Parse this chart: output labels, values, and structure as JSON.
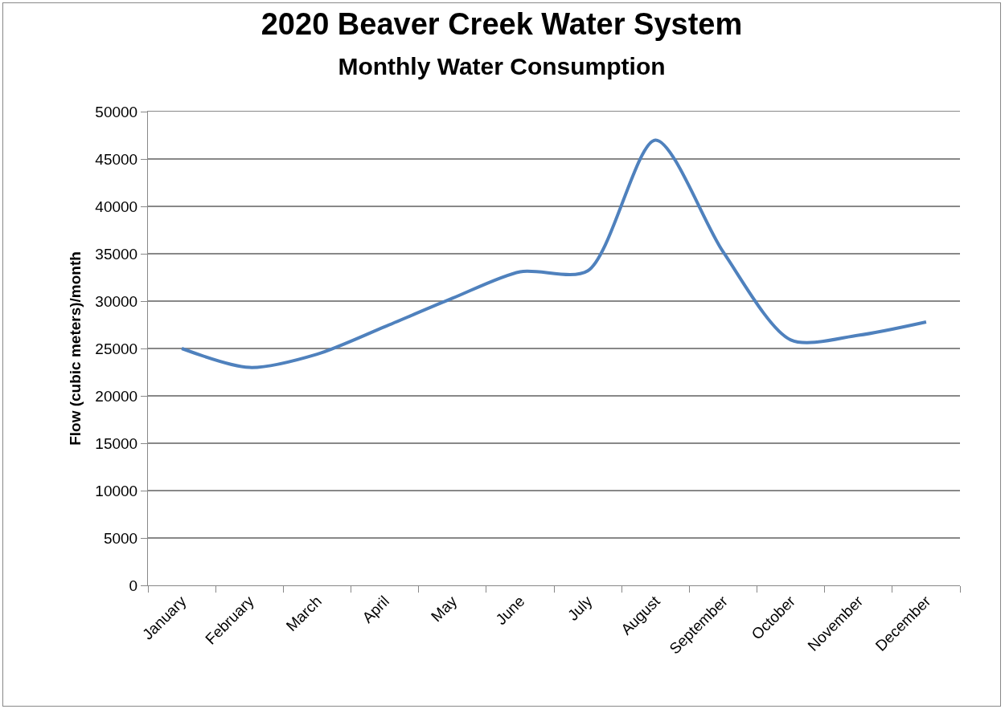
{
  "chart_data": {
    "type": "line",
    "title": "2020 Beaver Creek Water System",
    "subtitle": "Monthly Water Consumption",
    "ylabel": "Flow (cubic meters)/month",
    "categories": [
      "January",
      "February",
      "March",
      "April",
      "May",
      "June",
      "July",
      "August",
      "September",
      "October",
      "November",
      "December"
    ],
    "series": [
      {
        "color": "#4f81bd",
        "values": [
          25000,
          23000,
          24400,
          27300,
          30300,
          33100,
          33200,
          47000,
          35200,
          25900,
          26400,
          27800
        ]
      }
    ],
    "ylim": [
      0,
      50000
    ],
    "yticks": [
      0,
      5000,
      10000,
      15000,
      20000,
      25000,
      30000,
      35000,
      40000,
      45000,
      50000
    ],
    "grid": "y",
    "marker": "none",
    "line_style": "solid"
  }
}
